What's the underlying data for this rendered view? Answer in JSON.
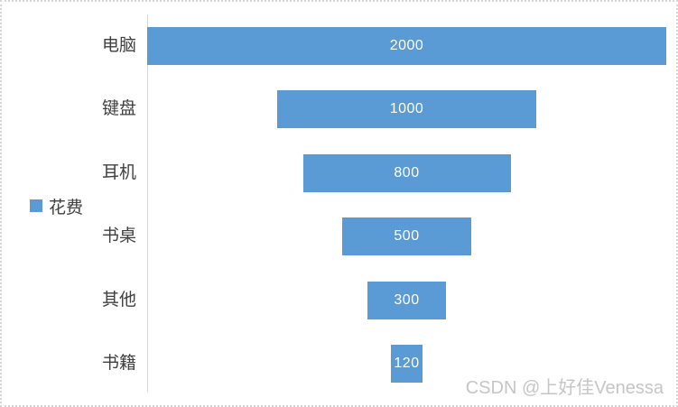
{
  "chart_data": {
    "type": "bar",
    "subtype": "funnel",
    "orientation": "horizontal-centered",
    "title": "",
    "categories": [
      "电脑",
      "键盘",
      "耳机",
      "书桌",
      "其他",
      "书籍"
    ],
    "series": [
      {
        "name": "花费",
        "values": [
          2000,
          1000,
          800,
          500,
          300,
          120
        ]
      }
    ],
    "value_labels": [
      "2000",
      "1000",
      "800",
      "500",
      "300",
      "120"
    ],
    "xlim": [
      0,
      2000
    ],
    "grid": false,
    "legend_position": "left",
    "bar_color": "#5B9BD5",
    "value_label_color": "#ffffff",
    "category_label_color": "#404040",
    "axis_line_color": "#d9d9d9"
  },
  "legend": {
    "label": "花费",
    "swatch_color": "#5B9BD5"
  },
  "watermark": "CSDN @上好佳Venessa"
}
